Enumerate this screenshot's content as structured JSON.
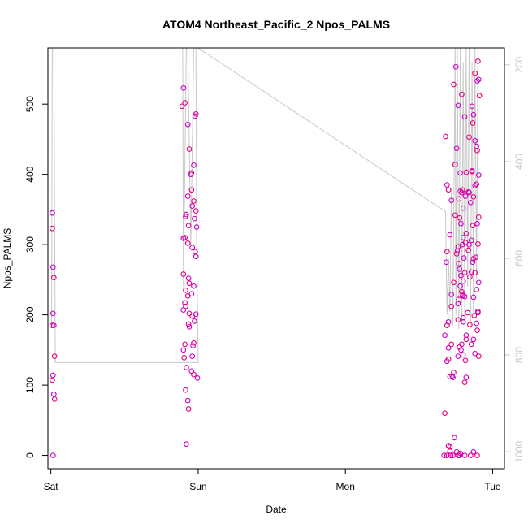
{
  "chart_data": {
    "type": "scatter",
    "title": "ATOM4 Northeast_Pacific_2 Npos_PALMS",
    "xlabel": "Date",
    "ylabel": "Npos_PALMS",
    "xlim": [
      -0.02,
      3.08
    ],
    "ylim": [
      -19,
      580
    ],
    "y2lim": [
      1035,
      165
    ],
    "x_ticks": [
      {
        "value": 0,
        "label": "Sat"
      },
      {
        "value": 1,
        "label": "Sun"
      },
      {
        "value": 2,
        "label": "Mon"
      },
      {
        "value": 3,
        "label": "Tue"
      }
    ],
    "y_ticks": [
      0,
      100,
      200,
      300,
      400,
      500
    ],
    "y2_ticks": [
      200,
      400,
      600,
      800,
      1000
    ],
    "grid": false,
    "point_colors": [
      "#cc00cc",
      "#e6007e"
    ],
    "line_color": "#c8c8c8",
    "points": [
      [
        0.01,
        345
      ],
      [
        0.01,
        323
      ],
      [
        0.015,
        268
      ],
      [
        0.02,
        253
      ],
      [
        0.015,
        202
      ],
      [
        0.01,
        185
      ],
      [
        0.02,
        185
      ],
      [
        0.025,
        141
      ],
      [
        0.015,
        114
      ],
      [
        0.01,
        107
      ],
      [
        0.02,
        87
      ],
      [
        0.025,
        80
      ],
      [
        0.015,
        0
      ],
      [
        0.89,
        497
      ],
      [
        0.9,
        523
      ],
      [
        0.91,
        502
      ],
      [
        0.93,
        471
      ],
      [
        0.94,
        436
      ],
      [
        0.95,
        400
      ],
      [
        0.955,
        402
      ],
      [
        0.97,
        413
      ],
      [
        0.985,
        486
      ],
      [
        0.98,
        483
      ],
      [
        0.955,
        378
      ],
      [
        0.93,
        369
      ],
      [
        0.97,
        362
      ],
      [
        0.96,
        355
      ],
      [
        0.985,
        348
      ],
      [
        0.92,
        343
      ],
      [
        0.915,
        340
      ],
      [
        0.975,
        337
      ],
      [
        0.935,
        327
      ],
      [
        0.99,
        325
      ],
      [
        0.91,
        310
      ],
      [
        0.9,
        309
      ],
      [
        0.93,
        302
      ],
      [
        0.96,
        296
      ],
      [
        0.98,
        290
      ],
      [
        0.985,
        283
      ],
      [
        0.9,
        258
      ],
      [
        0.935,
        252
      ],
      [
        0.94,
        245
      ],
      [
        0.97,
        241
      ],
      [
        0.915,
        235
      ],
      [
        0.955,
        230
      ],
      [
        0.93,
        227
      ],
      [
        0.91,
        217
      ],
      [
        0.915,
        212
      ],
      [
        0.9,
        207
      ],
      [
        0.94,
        202
      ],
      [
        0.985,
        201
      ],
      [
        0.96,
        198
      ],
      [
        0.975,
        191
      ],
      [
        0.935,
        187
      ],
      [
        0.94,
        183
      ],
      [
        0.97,
        160
      ],
      [
        0.965,
        156
      ],
      [
        0.91,
        158
      ],
      [
        0.9,
        150
      ],
      [
        0.905,
        139
      ],
      [
        0.96,
        141
      ],
      [
        0.92,
        125
      ],
      [
        0.955,
        120
      ],
      [
        0.97,
        115
      ],
      [
        0.995,
        110
      ],
      [
        0.915,
        93
      ],
      [
        0.93,
        78
      ],
      [
        0.935,
        66
      ],
      [
        0.92,
        16
      ],
      [
        2.68,
        454
      ],
      [
        2.69,
        385
      ],
      [
        2.7,
        378
      ],
      [
        2.72,
        363
      ],
      [
        2.745,
        342
      ],
      [
        2.71,
        314
      ],
      [
        2.69,
        290
      ],
      [
        2.685,
        275
      ],
      [
        2.735,
        246
      ],
      [
        2.72,
        229
      ],
      [
        2.72,
        212
      ],
      [
        2.7,
        190
      ],
      [
        2.69,
        185
      ],
      [
        2.675,
        171
      ],
      [
        2.72,
        158
      ],
      [
        2.7,
        153
      ],
      [
        2.7,
        137
      ],
      [
        2.69,
        134
      ],
      [
        2.735,
        118
      ],
      [
        2.725,
        113
      ],
      [
        2.71,
        112
      ],
      [
        2.73,
        111
      ],
      [
        2.675,
        60
      ],
      [
        2.74,
        25
      ],
      [
        2.7,
        14
      ],
      [
        2.71,
        12
      ],
      [
        2.71,
        6
      ],
      [
        2.67,
        0
      ],
      [
        2.69,
        0
      ],
      [
        2.715,
        0
      ],
      [
        2.73,
        0
      ],
      [
        2.75,
        553
      ],
      [
        2.79,
        514
      ],
      [
        2.765,
        498
      ],
      [
        2.735,
        528
      ],
      [
        2.755,
        437
      ],
      [
        2.745,
        414
      ],
      [
        2.81,
        482
      ],
      [
        2.82,
        403
      ],
      [
        2.78,
        402
      ],
      [
        2.795,
        378
      ],
      [
        2.78,
        376
      ],
      [
        2.79,
        374
      ],
      [
        2.815,
        369
      ],
      [
        2.77,
        365
      ],
      [
        2.8,
        352
      ],
      [
        2.775,
        338
      ],
      [
        2.785,
        330
      ],
      [
        2.82,
        316
      ],
      [
        2.8,
        310
      ],
      [
        2.815,
        303
      ],
      [
        2.795,
        300
      ],
      [
        2.765,
        297
      ],
      [
        2.76,
        291
      ],
      [
        2.755,
        287
      ],
      [
        2.805,
        281
      ],
      [
        2.77,
        273
      ],
      [
        2.775,
        265
      ],
      [
        2.81,
        260
      ],
      [
        2.785,
        256
      ],
      [
        2.8,
        248
      ],
      [
        2.78,
        241
      ],
      [
        2.79,
        233
      ],
      [
        2.8,
        228
      ],
      [
        2.795,
        227
      ],
      [
        2.81,
        226
      ],
      [
        2.77,
        222
      ],
      [
        2.765,
        216
      ],
      [
        2.83,
        203
      ],
      [
        2.8,
        196
      ],
      [
        2.765,
        193
      ],
      [
        2.8,
        190
      ],
      [
        2.845,
        186
      ],
      [
        2.82,
        171
      ],
      [
        2.82,
        165
      ],
      [
        2.79,
        158
      ],
      [
        2.775,
        154
      ],
      [
        2.785,
        150
      ],
      [
        2.8,
        143
      ],
      [
        2.765,
        141
      ],
      [
        2.815,
        135
      ],
      [
        2.82,
        111
      ],
      [
        2.81,
        104
      ],
      [
        2.755,
        5
      ],
      [
        2.765,
        0
      ],
      [
        2.775,
        0
      ],
      [
        2.78,
        3
      ],
      [
        2.81,
        0
      ],
      [
        2.85,
        0
      ],
      [
        2.86,
        497
      ],
      [
        2.865,
        473
      ],
      [
        2.87,
        485
      ],
      [
        2.88,
        544
      ],
      [
        2.895,
        533
      ],
      [
        2.9,
        561
      ],
      [
        2.905,
        535
      ],
      [
        2.91,
        512
      ],
      [
        2.89,
        440
      ],
      [
        2.895,
        434
      ],
      [
        2.88,
        448
      ],
      [
        2.84,
        453
      ],
      [
        2.86,
        405
      ],
      [
        2.86,
        404
      ],
      [
        2.905,
        399
      ],
      [
        2.89,
        386
      ],
      [
        2.88,
        384
      ],
      [
        2.835,
        375
      ],
      [
        2.84,
        374
      ],
      [
        2.87,
        368
      ],
      [
        2.85,
        360
      ],
      [
        2.905,
        339
      ],
      [
        2.895,
        330
      ],
      [
        2.865,
        327
      ],
      [
        2.855,
        306
      ],
      [
        2.9,
        301
      ],
      [
        2.84,
        300
      ],
      [
        2.835,
        292
      ],
      [
        2.885,
        282
      ],
      [
        2.87,
        280
      ],
      [
        2.865,
        275
      ],
      [
        2.88,
        260
      ],
      [
        2.855,
        261
      ],
      [
        2.845,
        254
      ],
      [
        2.905,
        246
      ],
      [
        2.89,
        236
      ],
      [
        2.87,
        225
      ],
      [
        2.9,
        205
      ],
      [
        2.9,
        203
      ],
      [
        2.875,
        199
      ],
      [
        2.89,
        188
      ],
      [
        2.895,
        178
      ],
      [
        2.87,
        165
      ],
      [
        2.855,
        158
      ],
      [
        2.88,
        145
      ],
      [
        2.905,
        141
      ],
      [
        2.87,
        5
      ],
      [
        2.895,
        0
      ]
    ],
    "line": [
      [
        0.005,
        185
      ],
      [
        0.01,
        600
      ],
      [
        0.02,
        600
      ],
      [
        0.03,
        132
      ],
      [
        1.0,
        132
      ],
      [
        0.99,
        300
      ],
      [
        0.985,
        600
      ],
      [
        0.92,
        600
      ],
      [
        0.9,
        240
      ],
      [
        0.895,
        600
      ],
      [
        0.93,
        600
      ],
      [
        0.95,
        300
      ],
      [
        0.97,
        600
      ],
      [
        1.0,
        588
      ],
      [
        2.68,
        347
      ],
      [
        2.69,
        200
      ],
      [
        2.7,
        280
      ],
      [
        2.71,
        205
      ],
      [
        2.72,
        380
      ],
      [
        2.73,
        185
      ],
      [
        2.745,
        600
      ],
      [
        2.75,
        200
      ],
      [
        2.76,
        590
      ],
      [
        2.77,
        180
      ],
      [
        2.78,
        600
      ],
      [
        2.79,
        190
      ],
      [
        2.8,
        560
      ],
      [
        2.81,
        200
      ],
      [
        2.82,
        600
      ],
      [
        2.83,
        240
      ],
      [
        2.84,
        600
      ],
      [
        2.85,
        180
      ],
      [
        2.86,
        560
      ],
      [
        2.87,
        200
      ],
      [
        2.88,
        600
      ],
      [
        2.89,
        250
      ],
      [
        2.9,
        600
      ],
      [
        2.91,
        600
      ]
    ]
  }
}
